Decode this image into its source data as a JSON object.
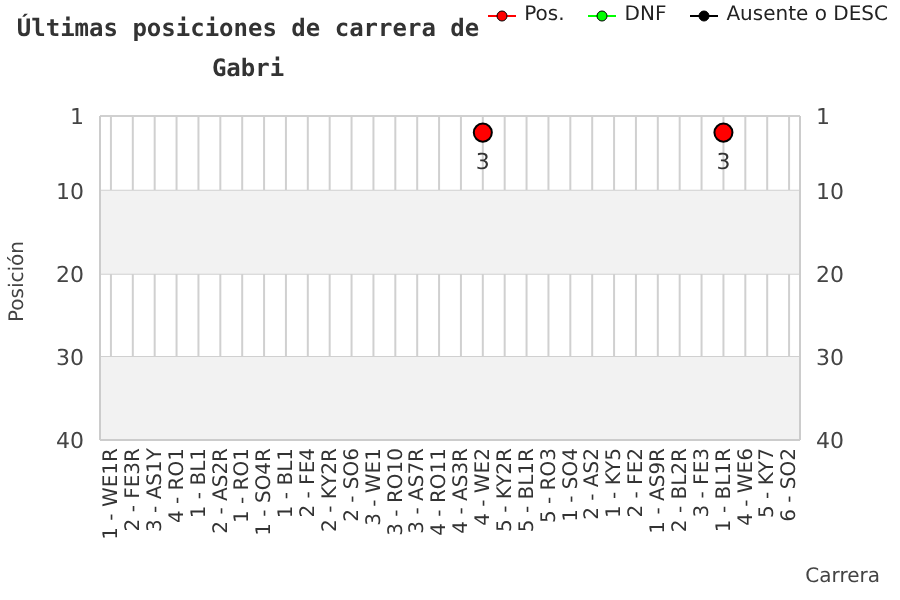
{
  "chart_data": {
    "type": "scatter",
    "title": "Últimas posiciones de carrera de Gabri",
    "xlabel": "Carrera",
    "ylabel": "Posición",
    "categories": [
      "1 - WE1R",
      "2 - FE3R",
      "3 - AS1Y",
      "4 - RO1",
      "1 - BL1",
      "2 - AS2R",
      "1 - RO1",
      "1 - SO4R",
      "1 - BL1",
      "2 - FE4",
      "2 - KY2R",
      "2 - SO6",
      "3 - WE1",
      "3 - RO10",
      "3 - AS7R",
      "4 - RO11",
      "4 - AS3R",
      "4 - WE2",
      "5 - KY2R",
      "5 - BL1R",
      "5 - RO3",
      "1 - SO4",
      "2 - AS2",
      "1 - KY5",
      "2 - FE2",
      "1 - AS9R",
      "2 - BL2R",
      "3 - FE3",
      "1 - BL1R",
      "4 - WE6",
      "5 - KY7",
      "6 - SO2"
    ],
    "series": [
      {
        "name": "Pos.",
        "color": "#ff0000",
        "values": [
          null,
          null,
          null,
          null,
          null,
          null,
          null,
          null,
          null,
          null,
          null,
          null,
          null,
          null,
          null,
          null,
          null,
          3,
          null,
          null,
          null,
          null,
          null,
          null,
          null,
          null,
          null,
          null,
          3,
          null,
          null,
          null
        ]
      },
      {
        "name": "DNF",
        "color": "#00ff00",
        "values": [
          null,
          null,
          null,
          null,
          null,
          null,
          null,
          null,
          null,
          null,
          null,
          null,
          null,
          null,
          null,
          null,
          null,
          null,
          null,
          null,
          null,
          null,
          null,
          null,
          null,
          null,
          null,
          null,
          null,
          null,
          null,
          null
        ]
      },
      {
        "name": "Ausente o DESC",
        "color": "#000000",
        "values": [
          null,
          null,
          null,
          null,
          null,
          null,
          null,
          null,
          null,
          null,
          null,
          null,
          null,
          null,
          null,
          null,
          null,
          null,
          null,
          null,
          null,
          null,
          null,
          null,
          null,
          null,
          null,
          null,
          null,
          null,
          null,
          null
        ]
      }
    ],
    "ylim": [
      40,
      1
    ],
    "yticks": [
      1,
      10,
      20,
      30,
      40
    ],
    "y2lim": [
      40,
      1
    ],
    "y2ticks": [
      1,
      10,
      20,
      30,
      40
    ],
    "bands": [
      {
        "axis": "y",
        "from": 10,
        "to": 20,
        "color": "#f2f2f2"
      },
      {
        "axis": "y",
        "from": 30,
        "to": 40,
        "color": "#f2f2f2"
      }
    ],
    "grid": true,
    "legend": "top right",
    "marker": "circle",
    "data_labels": true
  }
}
